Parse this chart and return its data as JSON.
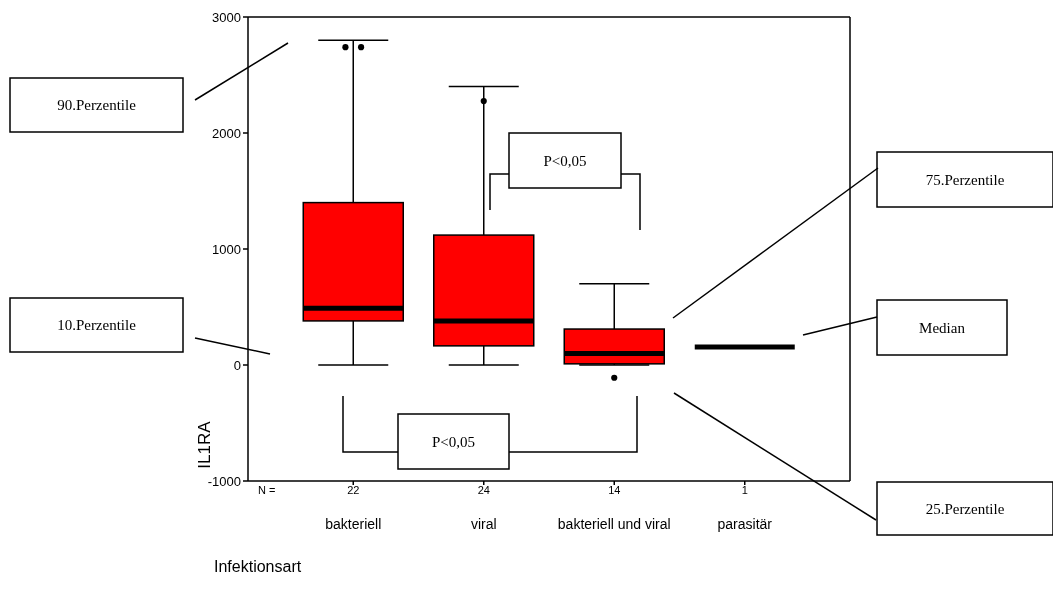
{
  "chart_data": {
    "type": "box",
    "xlabel": "Infektionsart",
    "ylabel": "IL1RA",
    "categories": [
      "bakteriell",
      "viral",
      "bakteriell und viral",
      "parasitär"
    ],
    "colors": [
      "#ff0000",
      "#ff0000",
      "#ff0000",
      "#000000"
    ],
    "boxes": [
      {
        "low": 0,
        "q1": 380,
        "median": 490,
        "q3": 1400,
        "high": 2800,
        "outliers": [
          2740,
          2740
        ]
      },
      {
        "low": 0,
        "q1": 165,
        "median": 380,
        "q3": 1120,
        "high": 2400,
        "outliers": [
          2275
        ]
      },
      {
        "low": 0,
        "q1": 10,
        "median": 100,
        "q3": 310,
        "high": 700,
        "outliers": [
          -110
        ]
      },
      {
        "low": 155,
        "q1": 155,
        "median": 155,
        "q3": 155,
        "high": 155
      }
    ],
    "ylim": [
      -1000,
      3000
    ],
    "yticks": [
      -1000,
      0,
      1000,
      2000,
      3000
    ],
    "grid": false,
    "annotations": [
      "90.Perzentile",
      "10.Perzentile",
      "75.Perzentile",
      "Median",
      "25.Perzentile",
      "P<0,05",
      "P<0,05",
      "N =",
      "22",
      "24",
      "14",
      "1"
    ]
  }
}
